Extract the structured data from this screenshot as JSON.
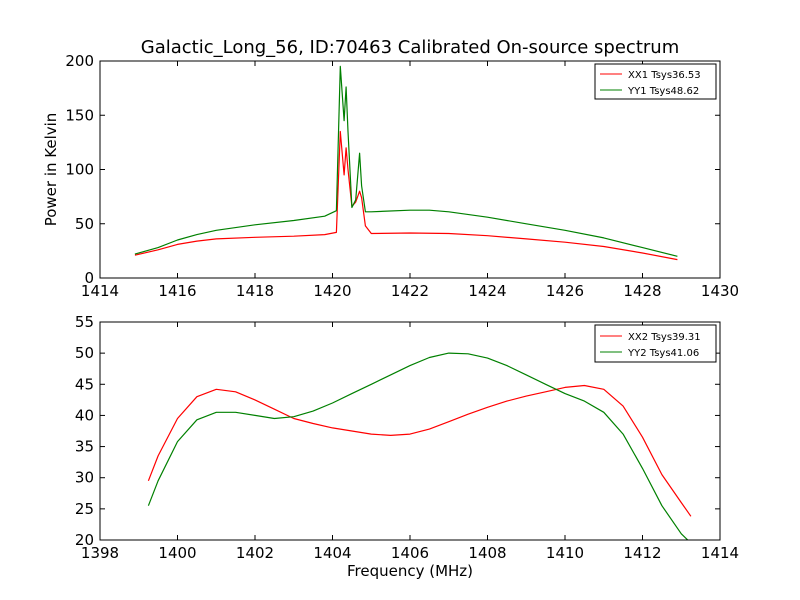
{
  "title": "Galactic_Long_56, ID:70463 Calibrated On-source spectrum",
  "colors": {
    "xx": "#ff0000",
    "yy": "#008000",
    "axes": "#000000",
    "background": "#ffffff"
  },
  "chart_data": [
    {
      "type": "line",
      "title": "Galactic_Long_56, ID:70463 Calibrated On-source spectrum",
      "xlabel": "",
      "ylabel": "Power in Kelvin",
      "xlim": [
        1414,
        1430
      ],
      "ylim": [
        0,
        200
      ],
      "xticks": [
        1414,
        1416,
        1418,
        1420,
        1422,
        1424,
        1426,
        1428,
        1430
      ],
      "yticks": [
        0,
        50,
        100,
        150,
        200
      ],
      "grid": false,
      "legend_position": "top-right",
      "series": [
        {
          "name": "XX1 Tsys36.53",
          "color": "#ff0000",
          "x": [
            1414.9,
            1415.5,
            1416.0,
            1416.5,
            1417.0,
            1418.0,
            1419.0,
            1419.8,
            1420.1,
            1420.2,
            1420.3,
            1420.35,
            1420.4,
            1420.5,
            1420.6,
            1420.7,
            1420.75,
            1420.85,
            1421.0,
            1422.0,
            1423.0,
            1424.0,
            1425.0,
            1426.0,
            1427.0,
            1428.0,
            1428.9
          ],
          "y": [
            21,
            26,
            31,
            34,
            36,
            37.5,
            38.5,
            40,
            42,
            135,
            95,
            120,
            100,
            66,
            70,
            80,
            74,
            48,
            41,
            41.5,
            41,
            39,
            36,
            33,
            29,
            23,
            17
          ]
        },
        {
          "name": "YY1 Tsys48.62",
          "color": "#008000",
          "x": [
            1414.9,
            1415.5,
            1416.0,
            1416.5,
            1417.0,
            1418.0,
            1419.0,
            1419.8,
            1420.1,
            1420.2,
            1420.3,
            1420.35,
            1420.4,
            1420.5,
            1420.6,
            1420.7,
            1420.75,
            1420.85,
            1421.0,
            1422.0,
            1422.5,
            1423.0,
            1424.0,
            1425.0,
            1426.0,
            1427.0,
            1428.0,
            1428.9
          ],
          "y": [
            22,
            28,
            35,
            40,
            44,
            49,
            53,
            57,
            62,
            195,
            145,
            176,
            135,
            65,
            72,
            115,
            85,
            61,
            61,
            62.5,
            62.5,
            61,
            56,
            50,
            44,
            37,
            28,
            20
          ]
        }
      ]
    },
    {
      "type": "line",
      "title": "",
      "xlabel": "Frequency (MHz)",
      "ylabel": "",
      "xlim": [
        1398,
        1414
      ],
      "ylim": [
        20,
        55
      ],
      "xticks": [
        1398,
        1400,
        1402,
        1404,
        1406,
        1408,
        1410,
        1412,
        1414
      ],
      "yticks": [
        20,
        25,
        30,
        35,
        40,
        45,
        50,
        55
      ],
      "grid": false,
      "legend_position": "top-right",
      "series": [
        {
          "name": "XX2 Tsys39.31",
          "color": "#ff0000",
          "x": [
            1399.25,
            1399.5,
            1400.0,
            1400.5,
            1401.0,
            1401.5,
            1402.0,
            1402.5,
            1403.0,
            1403.5,
            1404.0,
            1404.5,
            1405.0,
            1405.5,
            1406.0,
            1406.5,
            1407.0,
            1407.5,
            1408.0,
            1408.5,
            1409.0,
            1409.5,
            1410.0,
            1410.5,
            1411.0,
            1411.5,
            1412.0,
            1412.5,
            1413.0,
            1413.25
          ],
          "y": [
            29.5,
            33.5,
            39.5,
            43.0,
            44.2,
            43.8,
            42.5,
            41.0,
            39.5,
            38.7,
            38.0,
            37.5,
            37.0,
            36.8,
            37.0,
            37.8,
            39.0,
            40.2,
            41.3,
            42.3,
            43.1,
            43.8,
            44.5,
            44.8,
            44.2,
            41.5,
            36.5,
            30.5,
            26.0,
            23.8
          ]
        },
        {
          "name": "YY2 Tsys41.06",
          "color": "#008000",
          "x": [
            1399.25,
            1399.5,
            1400.0,
            1400.5,
            1401.0,
            1401.5,
            1402.0,
            1402.5,
            1403.0,
            1403.5,
            1404.0,
            1404.5,
            1405.0,
            1405.5,
            1406.0,
            1406.5,
            1407.0,
            1407.5,
            1408.0,
            1408.5,
            1409.0,
            1409.5,
            1410.0,
            1410.5,
            1411.0,
            1411.5,
            1412.0,
            1412.5,
            1413.0,
            1413.25
          ],
          "y": [
            25.5,
            29.5,
            35.8,
            39.3,
            40.5,
            40.5,
            40.0,
            39.5,
            39.8,
            40.7,
            42.0,
            43.5,
            45.0,
            46.5,
            48.0,
            49.3,
            50.0,
            49.9,
            49.2,
            48.0,
            46.5,
            45.0,
            43.5,
            42.3,
            40.5,
            37.0,
            31.5,
            25.5,
            21.0,
            19.5
          ]
        }
      ]
    }
  ]
}
